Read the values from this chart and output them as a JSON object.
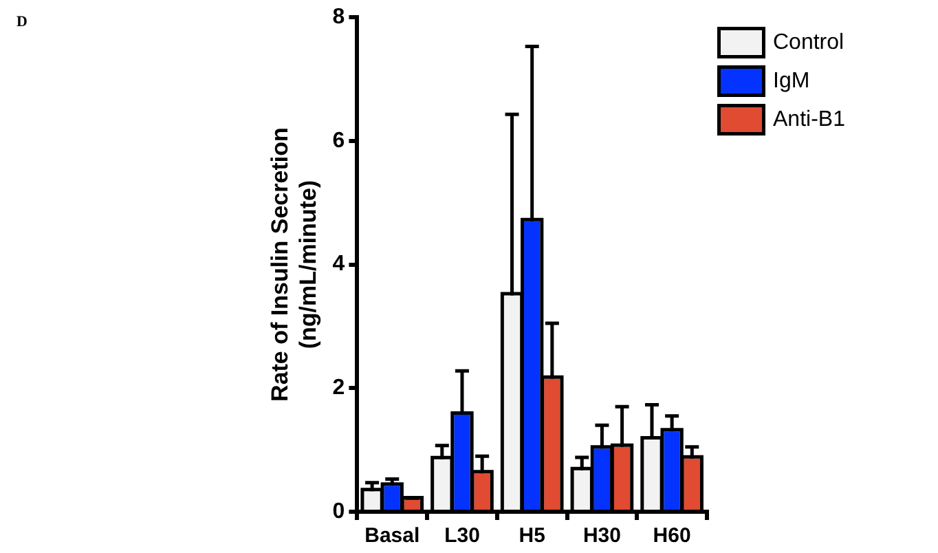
{
  "chart_data": {
    "type": "bar",
    "ylabel": "Rate of Insulin Secretion\n(ng/mL/minute)",
    "annotations": [
      "D"
    ],
    "categories": [
      "Basal",
      "L30",
      "H5",
      "H30",
      "H60"
    ],
    "series": [
      {
        "name": "Control",
        "color": "#f2f2f2",
        "values": [
          0.33,
          0.85,
          3.5,
          0.67,
          1.17
        ],
        "errors": [
          [
            0.33,
            0.47
          ],
          [
            0.85,
            1.07
          ],
          [
            3.5,
            6.43
          ],
          [
            0.67,
            0.88
          ],
          [
            1.17,
            1.73
          ]
        ]
      },
      {
        "name": "IgM",
        "color": "#0433ff",
        "values": [
          0.42,
          1.57,
          4.7,
          1.02,
          1.3
        ],
        "errors": [
          [
            0.42,
            0.53
          ],
          [
            1.57,
            2.28
          ],
          [
            4.7,
            7.53
          ],
          [
            1.02,
            1.4
          ],
          [
            1.3,
            1.55
          ]
        ]
      },
      {
        "name": "Anti-B1",
        "color": "#e04b32",
        "values": [
          0.2,
          0.62,
          2.15,
          1.05,
          0.86
        ],
        "errors": [
          [
            0.2,
            0.22
          ],
          [
            0.62,
            0.9
          ],
          [
            2.15,
            3.05
          ],
          [
            1.05,
            1.7
          ],
          [
            0.86,
            1.05
          ]
        ]
      }
    ],
    "ylim": [
      0,
      8
    ],
    "yticks": [
      0,
      2,
      4,
      6,
      8
    ],
    "grid": false,
    "legend": "top right"
  }
}
